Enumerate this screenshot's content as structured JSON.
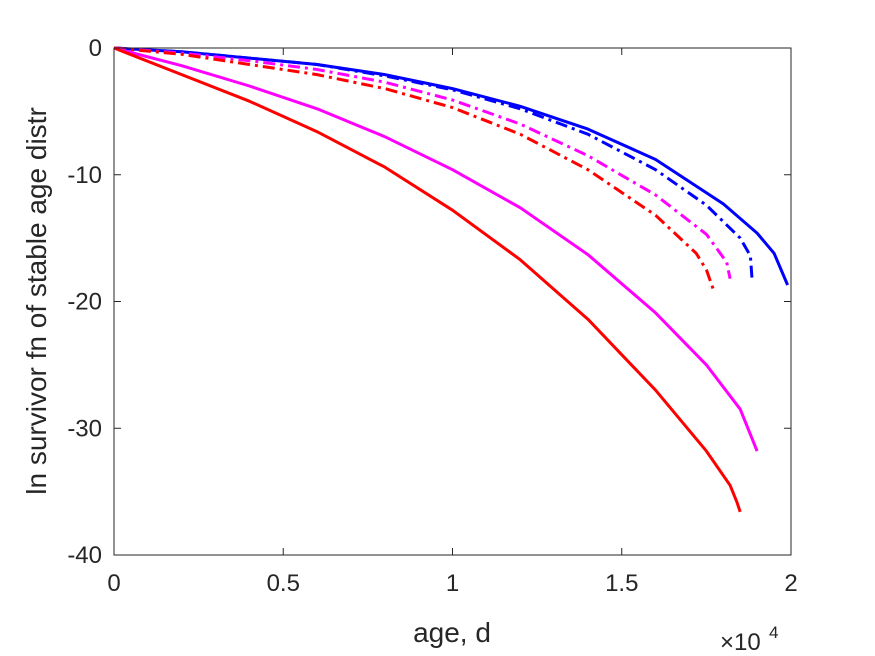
{
  "chart_data": {
    "type": "line",
    "title": "",
    "xlabel": "age, d",
    "ylabel": "ln survivor fn of stable age distr",
    "x_exponent_label": "×10",
    "x_exponent_power": "4",
    "xlim": [
      0,
      20000
    ],
    "ylim": [
      -40,
      0
    ],
    "grid": false,
    "legend": "none",
    "x_ticks": [
      0,
      5000,
      10000,
      15000,
      20000
    ],
    "x_tick_labels": [
      "0",
      "0.5",
      "1",
      "1.5",
      "2"
    ],
    "y_ticks": [
      0,
      -10,
      -20,
      -30,
      -40
    ],
    "y_tick_labels": [
      "0",
      "-10",
      "-20",
      "-30",
      "-40"
    ],
    "series": [
      {
        "color": "#0000ff",
        "style": "solid",
        "points": [
          [
            0,
            0
          ],
          [
            2000,
            -0.3
          ],
          [
            4000,
            -0.8
          ],
          [
            6000,
            -1.3
          ],
          [
            8000,
            -2.1
          ],
          [
            10000,
            -3.2
          ],
          [
            12000,
            -4.6
          ],
          [
            14000,
            -6.4
          ],
          [
            16000,
            -8.8
          ],
          [
            18000,
            -12.3
          ],
          [
            19000,
            -14.6
          ],
          [
            19500,
            -16.2
          ],
          [
            19900,
            -18.7
          ]
        ]
      },
      {
        "color": "#0000ff",
        "style": "dashdot",
        "points": [
          [
            0,
            0
          ],
          [
            2000,
            -0.3
          ],
          [
            4000,
            -0.8
          ],
          [
            6000,
            -1.3
          ],
          [
            8000,
            -2.2
          ],
          [
            10000,
            -3.3
          ],
          [
            12000,
            -4.8
          ],
          [
            14000,
            -6.8
          ],
          [
            16000,
            -9.6
          ],
          [
            17500,
            -12.4
          ],
          [
            18500,
            -15.0
          ],
          [
            18800,
            -16.4
          ],
          [
            18850,
            -18.3
          ]
        ]
      },
      {
        "color": "#ff00ff",
        "style": "dashdot",
        "points": [
          [
            0,
            0
          ],
          [
            2000,
            -0.4
          ],
          [
            4000,
            -1.0
          ],
          [
            6000,
            -1.7
          ],
          [
            8000,
            -2.7
          ],
          [
            10000,
            -4.1
          ],
          [
            12000,
            -6.0
          ],
          [
            14000,
            -8.5
          ],
          [
            16000,
            -11.6
          ],
          [
            17500,
            -14.7
          ],
          [
            18100,
            -16.9
          ],
          [
            18200,
            -18.2
          ]
        ]
      },
      {
        "color": "#ff0000",
        "style": "dashdot",
        "points": [
          [
            0,
            0
          ],
          [
            2000,
            -0.5
          ],
          [
            4000,
            -1.3
          ],
          [
            6000,
            -2.1
          ],
          [
            8000,
            -3.2
          ],
          [
            10000,
            -4.7
          ],
          [
            12000,
            -6.8
          ],
          [
            14000,
            -9.6
          ],
          [
            16000,
            -13.2
          ],
          [
            17200,
            -16.2
          ],
          [
            17500,
            -17.5
          ],
          [
            17700,
            -19.0
          ]
        ]
      },
      {
        "color": "#ff00ff",
        "style": "solid",
        "points": [
          [
            0,
            0
          ],
          [
            2000,
            -1.4
          ],
          [
            4000,
            -3.0
          ],
          [
            6000,
            -4.8
          ],
          [
            8000,
            -7.0
          ],
          [
            10000,
            -9.6
          ],
          [
            12000,
            -12.6
          ],
          [
            14000,
            -16.3
          ],
          [
            16000,
            -20.9
          ],
          [
            17500,
            -25.0
          ],
          [
            18500,
            -28.5
          ],
          [
            19000,
            -31.8
          ]
        ]
      },
      {
        "color": "#ff0000",
        "style": "solid",
        "points": [
          [
            0,
            0
          ],
          [
            2000,
            -2.1
          ],
          [
            4000,
            -4.2
          ],
          [
            6000,
            -6.6
          ],
          [
            8000,
            -9.4
          ],
          [
            10000,
            -12.8
          ],
          [
            12000,
            -16.7
          ],
          [
            14000,
            -21.4
          ],
          [
            16000,
            -27.0
          ],
          [
            17500,
            -31.8
          ],
          [
            18200,
            -34.5
          ],
          [
            18400,
            -35.8
          ],
          [
            18500,
            -36.6
          ]
        ]
      }
    ]
  }
}
